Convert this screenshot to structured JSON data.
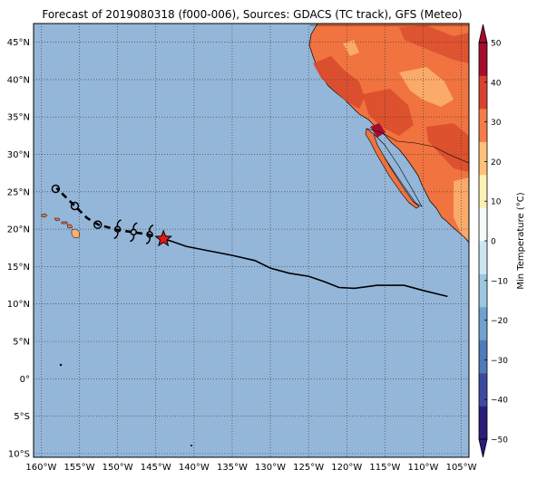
{
  "title": "Forecast of 2019080318 (f000-006), Sources: GDACS (TC track), GFS (Meteo)",
  "map": {
    "lon_range": [
      -161,
      -104
    ],
    "lat_range": [
      -10.5,
      47.5
    ],
    "lon_ticks": [
      -160,
      -155,
      -150,
      -145,
      -140,
      -135,
      -130,
      -125,
      -120,
      -115,
      -110,
      -105
    ],
    "lon_tick_labels": [
      "160°W",
      "155°W",
      "150°W",
      "145°W",
      "140°W",
      "135°W",
      "130°W",
      "125°W",
      "120°W",
      "115°W",
      "110°W",
      "105°W"
    ],
    "lat_ticks": [
      45,
      40,
      35,
      30,
      25,
      20,
      15,
      10,
      5,
      0,
      -5,
      -10
    ],
    "lat_tick_labels": [
      "45°N",
      "40°N",
      "35°N",
      "30°N",
      "25°N",
      "20°N",
      "15°N",
      "10°N",
      "5°N",
      "0°",
      "5°S",
      "10°S"
    ],
    "ocean_color": "#94b6d9",
    "grid": "dotted"
  },
  "colorbar": {
    "label": "Min Temperature (°C)",
    "ticks": [
      50,
      40,
      30,
      20,
      10,
      0,
      -10,
      -20,
      -30,
      -40,
      -50
    ],
    "tick_labels": [
      "50",
      "40",
      "30",
      "20",
      "10",
      "0",
      "−10",
      "−20",
      "−30",
      "−40",
      "−50"
    ],
    "colors": [
      "#2a1e7a",
      "#3d4aa0",
      "#4f7bba",
      "#6fa2cd",
      "#9cc7e0",
      "#cbe6f0",
      "#f5fafb",
      "#fdf0b6",
      "#fcc27a",
      "#f57c49",
      "#d8412f",
      "#a50d2c"
    ]
  },
  "track": {
    "past": [
      [
        -106.8,
        11.0
      ],
      [
        -110,
        11.8
      ],
      [
        -112.5,
        12.5
      ],
      [
        -116,
        12.5
      ],
      [
        -119,
        12.1
      ],
      [
        -121,
        12.2
      ],
      [
        -123,
        13.0
      ],
      [
        -125,
        13.7
      ],
      [
        -127.5,
        14.1
      ],
      [
        -130,
        14.8
      ],
      [
        -132,
        15.8
      ],
      [
        -135,
        16.5
      ],
      [
        -138,
        17.1
      ],
      [
        -141,
        17.7
      ],
      [
        -143,
        18.4
      ],
      [
        -144,
        18.7
      ]
    ],
    "forecast": [
      [
        -144,
        18.7
      ],
      [
        -146,
        19.3
      ],
      [
        -148,
        19.6
      ],
      [
        -150,
        19.9
      ],
      [
        -152.5,
        20.6
      ],
      [
        -154,
        21.5
      ],
      [
        -155.5,
        23.0
      ],
      [
        -157,
        24.5
      ],
      [
        -158,
        25.5
      ]
    ],
    "current_position": [
      -144,
      18.7
    ],
    "storm_symbols": [
      [
        -145.8,
        19.3
      ],
      [
        -147.9,
        19.6
      ],
      [
        -150,
        20.0
      ]
    ],
    "circle_markers": [
      [
        -152.6,
        20.6
      ],
      [
        -155.6,
        23.1
      ],
      [
        -158.1,
        25.4
      ]
    ]
  },
  "land_colors": {
    "main": "#f07340",
    "warm": "#d94b2c",
    "cool": "#fbb06e",
    "hot": "#a50d2c"
  }
}
